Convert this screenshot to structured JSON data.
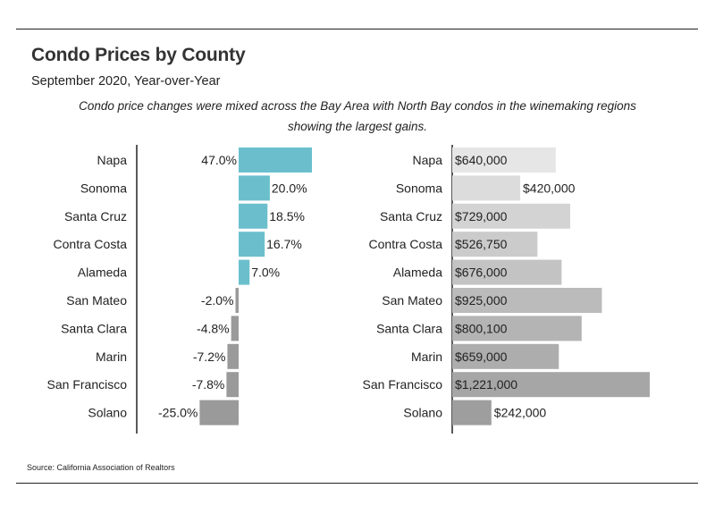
{
  "title": "Condo Prices by County",
  "subtitle": "September 2020, Year-over-Year",
  "description": "Condo price changes were mixed across the Bay Area with North Bay condos in the winemaking regions showing the largest gains.",
  "source": "Source:  California Association of Realtors",
  "chart_data": [
    {
      "type": "bar",
      "orientation": "horizontal",
      "categories": [
        "Napa",
        "Sonoma",
        "Santa Cruz",
        "Contra Costa",
        "Alameda",
        "San Mateo",
        "Santa Clara",
        "Marin",
        "San Francisco",
        "Solano"
      ],
      "values": [
        47.0,
        20.0,
        18.5,
        16.7,
        7.0,
        -2.0,
        -4.8,
        -7.2,
        -7.8,
        -25.0
      ],
      "labels": [
        "47.0%",
        "20.0%",
        "18.5%",
        "16.7%",
        "7.0%",
        "-2.0%",
        "-4.8%",
        "-7.2%",
        "-7.8%",
        "-25.0%"
      ],
      "colors": {
        "positive": "#6bbfcd",
        "negative": "#9a9a9a",
        "axis": "#222222"
      }
    },
    {
      "type": "bar",
      "orientation": "horizontal",
      "categories": [
        "Napa",
        "Sonoma",
        "Santa Cruz",
        "Contra Costa",
        "Alameda",
        "San Mateo",
        "Santa Clara",
        "Marin",
        "San Francisco",
        "Solano"
      ],
      "values": [
        640000,
        420000,
        729000,
        526750,
        676000,
        925000,
        800100,
        659000,
        1221000,
        242000
      ],
      "labels": [
        "$640,000",
        "$420,000",
        "$729,000",
        "$526,750",
        "$676,000",
        "$925,000",
        "$800,100",
        "$659,000",
        "$1,221,000",
        "$242,000"
      ],
      "colors": [
        "#e6e6e6",
        "#dcdcdc",
        "#d3d3d3",
        "#cbcbcb",
        "#c3c3c3",
        "#bbbbbb",
        "#b4b4b4",
        "#adadad",
        "#a6a6a6",
        "#9e9e9e"
      ]
    }
  ]
}
